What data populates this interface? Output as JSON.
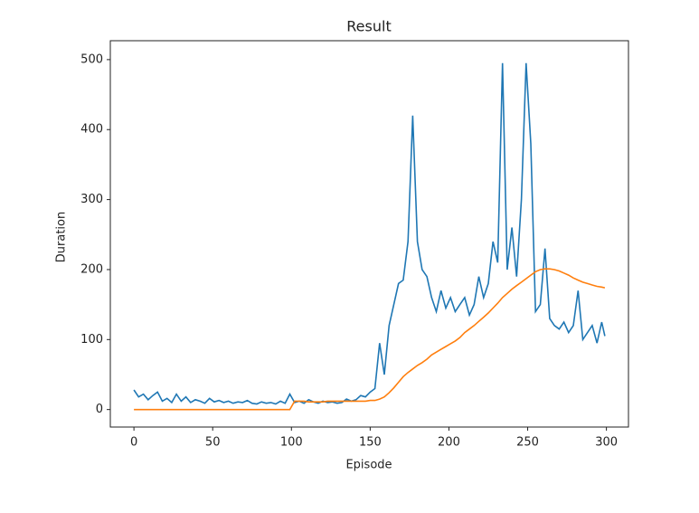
{
  "chart_data": {
    "type": "line",
    "title": "Result",
    "xlabel": "Episode",
    "ylabel": "Duration",
    "x": [
      0,
      3,
      6,
      9,
      12,
      15,
      18,
      21,
      24,
      27,
      30,
      33,
      36,
      39,
      42,
      45,
      48,
      51,
      54,
      57,
      60,
      63,
      66,
      69,
      72,
      75,
      78,
      81,
      84,
      87,
      90,
      93,
      96,
      99,
      102,
      105,
      108,
      111,
      114,
      117,
      120,
      123,
      126,
      129,
      132,
      135,
      138,
      141,
      144,
      147,
      150,
      153,
      156,
      159,
      162,
      165,
      168,
      171,
      174,
      177,
      180,
      183,
      186,
      189,
      192,
      195,
      198,
      201,
      204,
      207,
      210,
      213,
      216,
      219,
      222,
      225,
      228,
      231,
      234,
      237,
      240,
      243,
      246,
      249,
      252,
      255,
      258,
      261,
      264,
      267,
      270,
      273,
      276,
      279,
      282,
      285,
      288,
      291,
      294,
      297,
      299
    ],
    "series": [
      {
        "color": "#1f77b4",
        "values": [
          28,
          18,
          22,
          14,
          20,
          25,
          12,
          16,
          10,
          22,
          12,
          18,
          10,
          14,
          12,
          9,
          16,
          11,
          13,
          10,
          12,
          9,
          11,
          10,
          13,
          9,
          8,
          11,
          9,
          10,
          8,
          12,
          9,
          22,
          10,
          12,
          9,
          14,
          11,
          9,
          12,
          10,
          11,
          9,
          10,
          15,
          12,
          14,
          20,
          18,
          25,
          30,
          95,
          50,
          120,
          150,
          180,
          185,
          240,
          420,
          240,
          200,
          190,
          160,
          140,
          170,
          145,
          160,
          140,
          150,
          160,
          135,
          150,
          190,
          160,
          180,
          240,
          210,
          495,
          200,
          260,
          190,
          300,
          495,
          380,
          140,
          150,
          230,
          130,
          120,
          115,
          125,
          110,
          120,
          170,
          100,
          110,
          120,
          95,
          125,
          105
        ]
      },
      {
        "color": "#ff7f0e",
        "values": [
          0,
          0,
          0,
          0,
          0,
          0,
          0,
          0,
          0,
          0,
          0,
          0,
          0,
          0,
          0,
          0,
          0,
          0,
          0,
          0,
          0,
          0,
          0,
          0,
          0,
          0,
          0,
          0,
          0,
          0,
          0,
          0,
          0,
          0,
          12,
          12,
          12,
          11,
          11,
          11,
          11,
          12,
          12,
          12,
          12,
          12,
          12,
          12,
          12,
          12,
          13,
          13,
          15,
          18,
          24,
          31,
          39,
          47,
          53,
          58,
          63,
          67,
          72,
          78,
          82,
          86,
          90,
          94,
          98,
          103,
          110,
          115,
          120,
          126,
          132,
          138,
          145,
          152,
          160,
          166,
          172,
          177,
          182,
          187,
          192,
          197,
          200,
          201,
          201,
          200,
          198,
          195,
          192,
          188,
          185,
          182,
          180,
          178,
          176,
          175,
          174
        ]
      }
    ],
    "xlim": [
      -15,
      314
    ],
    "ylim": [
      -25,
      527
    ],
    "xticks": [
      0,
      50,
      100,
      150,
      200,
      250,
      300
    ],
    "yticks": [
      0,
      100,
      200,
      300,
      400,
      500
    ]
  }
}
